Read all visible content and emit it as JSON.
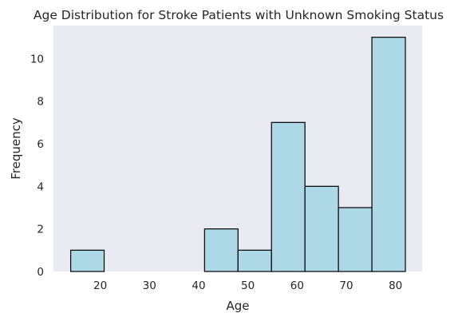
{
  "chart_data": {
    "type": "bar",
    "title": "Age Distribution for Stroke Patients with Unknown Smoking Status",
    "xlabel": "Age",
    "ylabel": "Frequency",
    "xlim": [
      10.5,
      85.4
    ],
    "ylim": [
      0,
      11.55
    ],
    "x_ticks": [
      20,
      30,
      40,
      50,
      60,
      70,
      80
    ],
    "y_ticks": [
      0,
      2,
      4,
      6,
      8,
      10
    ],
    "grid": false,
    "bin_edges": [
      14.0,
      20.8,
      27.6,
      34.4,
      41.2,
      48.0,
      54.8,
      61.6,
      68.4,
      75.2,
      82.0
    ],
    "counts": [
      1,
      0,
      0,
      0,
      2,
      1,
      7,
      4,
      3,
      11
    ],
    "colors": {
      "plot_background": "#EAEAF2",
      "bar_fill": "#ADD8E6",
      "bar_edge": "#000000",
      "text": "#262626"
    }
  }
}
